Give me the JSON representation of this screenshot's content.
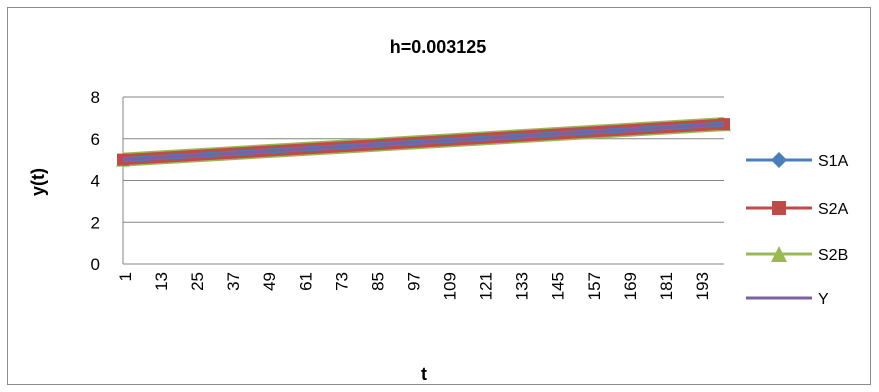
{
  "chart_data": {
    "type": "line",
    "title": "h=0.003125",
    "xlabel": "t",
    "ylabel": "y(t)",
    "ylim": [
      0,
      8
    ],
    "yticks": [
      "0",
      "2",
      "4",
      "6",
      "8"
    ],
    "x_start": 1,
    "x_end": 201,
    "x_tick_labels": [
      "1",
      "13",
      "25",
      "37",
      "49",
      "61",
      "73",
      "85",
      "97",
      "109",
      "121",
      "133",
      "145",
      "157",
      "169",
      "181",
      "193"
    ],
    "x_tick_values": [
      1,
      13,
      25,
      37,
      49,
      61,
      73,
      85,
      97,
      109,
      121,
      133,
      145,
      157,
      169,
      181,
      193
    ],
    "grid": "horizontal",
    "legend_position": "right",
    "series": [
      {
        "name": "S1A",
        "color": "#4a7ebb",
        "marker": "diamond",
        "start": 5.0,
        "end": 6.7
      },
      {
        "name": "S2A",
        "color": "#be4b48",
        "marker": "square",
        "start": 5.0,
        "end": 6.7
      },
      {
        "name": "S2B",
        "color": "#98b954",
        "marker": "triangle",
        "start": 5.0,
        "end": 6.7
      },
      {
        "name": "Y",
        "color": "#7d60a0",
        "marker": "none",
        "start": 5.0,
        "end": 6.7
      }
    ]
  }
}
